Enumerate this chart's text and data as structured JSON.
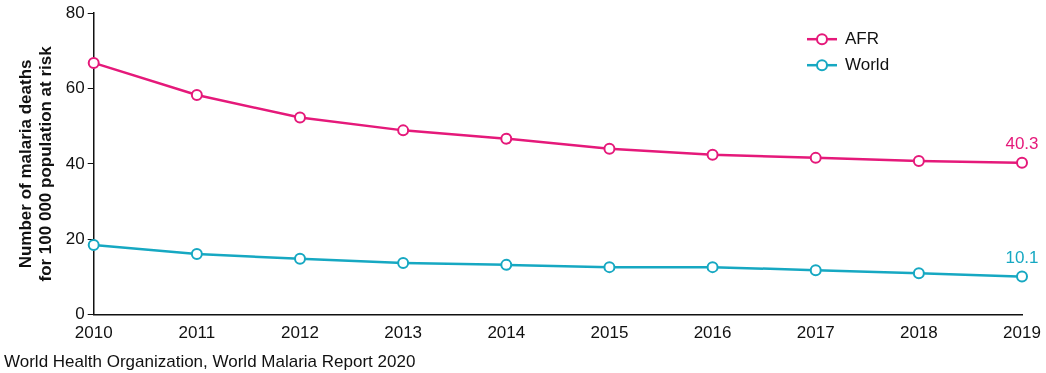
{
  "chart_data": {
    "type": "line",
    "ylabel": "Number of malaria deaths\nfor 100 000 population at risk",
    "categories": [
      "2010",
      "2011",
      "2012",
      "2013",
      "2014",
      "2015",
      "2016",
      "2017",
      "2018",
      "2019"
    ],
    "series": [
      {
        "name": "AFR",
        "color": "#e5197a",
        "values": [
          66.8,
          58.3,
          52.3,
          48.9,
          46.7,
          44.0,
          42.4,
          41.6,
          40.8,
          40.3
        ],
        "value_labels": [
          null,
          null,
          null,
          null,
          null,
          null,
          null,
          null,
          null,
          "40.3"
        ]
      },
      {
        "name": "World",
        "color": "#16a8c2",
        "values": [
          18.5,
          16.1,
          14.8,
          13.7,
          13.2,
          12.6,
          12.6,
          11.8,
          11.0,
          10.1
        ],
        "value_labels": [
          null,
          null,
          null,
          null,
          null,
          null,
          null,
          null,
          null,
          "10.1"
        ]
      }
    ],
    "ylim": [
      0,
      80
    ],
    "yticks": [
      0,
      20,
      40,
      60,
      80
    ],
    "grid": false,
    "legend": "top right",
    "marker": "circle",
    "line_style": "solid",
    "annotations": [
      "World Health Organization, World Malaria Report 2020"
    ]
  }
}
